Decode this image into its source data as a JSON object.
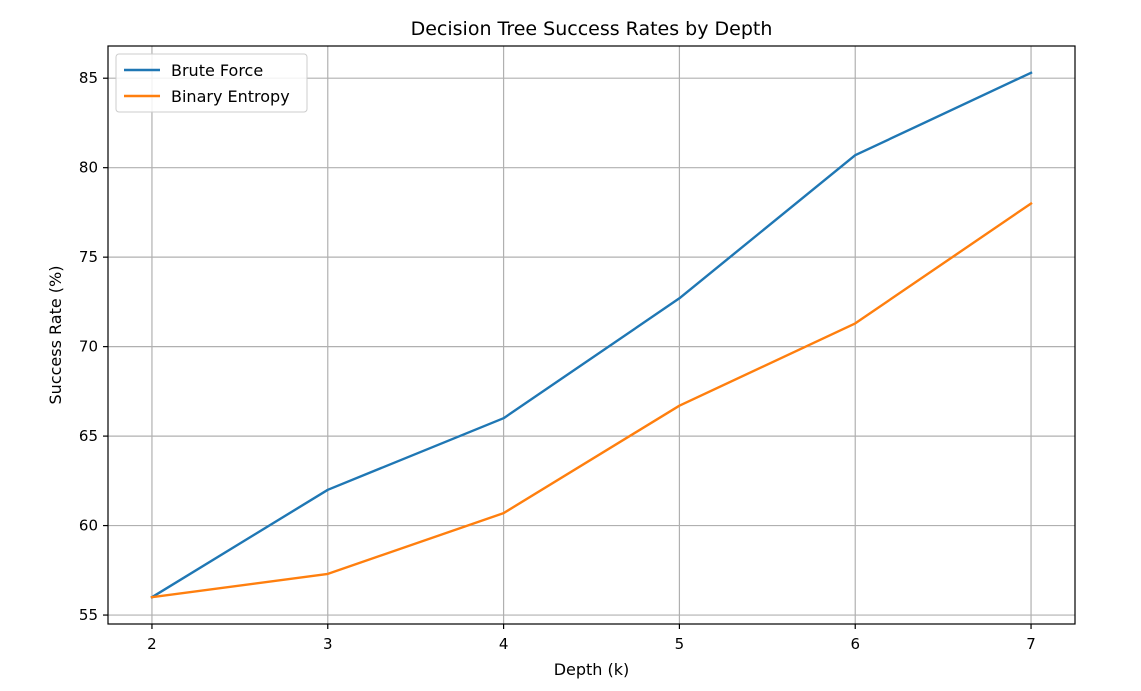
{
  "chart_data": {
    "type": "line",
    "title": "Decision Tree Success Rates by Depth",
    "xlabel": "Depth (k)",
    "ylabel": "Success Rate (%)",
    "x": [
      2,
      3,
      4,
      5,
      6,
      7
    ],
    "xlim": [
      1.75,
      7.25
    ],
    "ylim": [
      54.5,
      86.8
    ],
    "xticks": [
      2,
      3,
      4,
      5,
      6,
      7
    ],
    "yticks": [
      55,
      60,
      65,
      70,
      75,
      80,
      85
    ],
    "grid": true,
    "legend_position": "top-left",
    "series": [
      {
        "name": "Brute Force",
        "color": "#1f77b4",
        "values": [
          56.0,
          62.0,
          66.0,
          72.7,
          80.7,
          85.3
        ]
      },
      {
        "name": "Binary Entropy",
        "color": "#ff7f0e",
        "values": [
          56.0,
          57.3,
          60.7,
          66.7,
          71.3,
          78.0
        ]
      }
    ]
  }
}
